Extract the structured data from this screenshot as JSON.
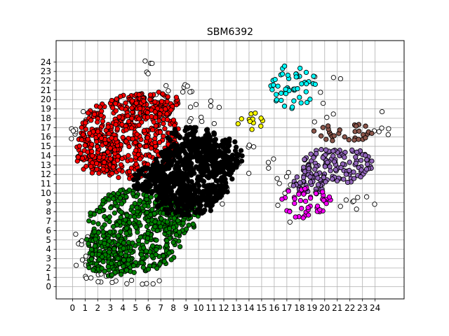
{
  "chart_data": {
    "type": "scatter",
    "title": "SBM6392",
    "xlabel": "",
    "ylabel": "",
    "xlim": [
      -1.3,
      26.3
    ],
    "ylim": [
      -1.3,
      26.3
    ],
    "x_ticks": [
      0,
      1,
      2,
      3,
      4,
      5,
      6,
      7,
      8,
      9,
      10,
      11,
      12,
      13,
      14,
      15,
      16,
      17,
      18,
      19,
      20,
      21,
      22,
      23,
      24
    ],
    "y_ticks": [
      0,
      1,
      2,
      3,
      4,
      5,
      6,
      7,
      8,
      9,
      10,
      11,
      12,
      13,
      14,
      15,
      16,
      17,
      18,
      19,
      20,
      21,
      22,
      23,
      24
    ],
    "grid": true,
    "marker_edge_color": "#000000",
    "series": [
      {
        "color": "#ffffff",
        "clusters": [
          {
            "cx": 0.5,
            "cy": 17.0,
            "rx": 0.8,
            "ry": 2.0,
            "n": 12
          },
          {
            "cx": 1.0,
            "cy": 4.0,
            "rx": 1.0,
            "ry": 2.5,
            "n": 14
          },
          {
            "cx": 2.5,
            "cy": 1.0,
            "rx": 1.5,
            "ry": 0.8,
            "n": 12
          },
          {
            "cx": 8.0,
            "cy": 21.0,
            "rx": 1.5,
            "ry": 1.2,
            "n": 10
          },
          {
            "cx": 6.0,
            "cy": 23.5,
            "rx": 1.0,
            "ry": 0.8,
            "n": 5
          },
          {
            "cx": 10.5,
            "cy": 18.5,
            "rx": 1.5,
            "ry": 1.5,
            "n": 10
          },
          {
            "cx": 14.5,
            "cy": 14.0,
            "rx": 1.5,
            "ry": 2.0,
            "n": 10
          },
          {
            "cx": 17.0,
            "cy": 9.0,
            "rx": 1.0,
            "ry": 4.0,
            "n": 10
          },
          {
            "cx": 22.5,
            "cy": 9.0,
            "rx": 1.5,
            "ry": 1.5,
            "n": 8
          },
          {
            "cx": 20.0,
            "cy": 20.0,
            "rx": 2.0,
            "ry": 3.0,
            "n": 8
          },
          {
            "cx": 24.5,
            "cy": 17.5,
            "rx": 1.0,
            "ry": 1.5,
            "n": 6
          },
          {
            "cx": 5.5,
            "cy": 0.5,
            "rx": 1.5,
            "ry": 0.4,
            "n": 6
          },
          {
            "cx": 11.5,
            "cy": 10.0,
            "rx": 1.0,
            "ry": 1.5,
            "n": 8
          }
        ]
      },
      {
        "color": "#ff0000",
        "clusters": [
          {
            "cx": 4.5,
            "cy": 16.0,
            "rx": 4.0,
            "ry": 4.5,
            "n": 420
          },
          {
            "cx": 2.0,
            "cy": 14.5,
            "rx": 1.8,
            "ry": 2.5,
            "n": 120
          },
          {
            "cx": 6.5,
            "cy": 19.5,
            "rx": 2.0,
            "ry": 1.5,
            "n": 80
          }
        ]
      },
      {
        "color": "#008000",
        "clusters": [
          {
            "cx": 5.0,
            "cy": 6.0,
            "rx": 4.0,
            "ry": 4.5,
            "n": 420
          },
          {
            "cx": 3.0,
            "cy": 3.0,
            "rx": 2.0,
            "ry": 2.0,
            "n": 100
          },
          {
            "cx": 8.0,
            "cy": 7.5,
            "rx": 2.2,
            "ry": 2.0,
            "n": 100
          }
        ]
      },
      {
        "color": "#000000",
        "clusters": [
          {
            "cx": 9.5,
            "cy": 12.0,
            "rx": 3.3,
            "ry": 3.5,
            "n": 480
          },
          {
            "cx": 6.5,
            "cy": 11.5,
            "rx": 2.0,
            "ry": 1.5,
            "n": 120
          },
          {
            "cx": 12.0,
            "cy": 14.0,
            "rx": 1.5,
            "ry": 2.0,
            "n": 90
          },
          {
            "cx": 9.0,
            "cy": 9.0,
            "rx": 2.5,
            "ry": 1.5,
            "n": 120
          },
          {
            "cx": 9.5,
            "cy": 16.0,
            "rx": 2.0,
            "ry": 1.2,
            "n": 70
          }
        ]
      },
      {
        "color": "#9467bd",
        "clusters": [
          {
            "cx": 21.0,
            "cy": 13.0,
            "rx": 2.8,
            "ry": 2.0,
            "n": 130
          },
          {
            "cx": 19.0,
            "cy": 11.0,
            "rx": 1.5,
            "ry": 1.2,
            "n": 40
          }
        ]
      },
      {
        "color": "#ff00ff",
        "clusters": [
          {
            "cx": 18.5,
            "cy": 9.0,
            "rx": 2.0,
            "ry": 1.8,
            "n": 45
          }
        ]
      },
      {
        "color": "#00ffff",
        "clusters": [
          {
            "cx": 17.5,
            "cy": 21.5,
            "rx": 1.8,
            "ry": 2.5,
            "n": 50
          }
        ]
      },
      {
        "color": "#8c564b",
        "clusters": [
          {
            "cx": 21.5,
            "cy": 16.5,
            "rx": 2.5,
            "ry": 1.0,
            "n": 30
          }
        ]
      },
      {
        "color": "#ffff00",
        "clusters": [
          {
            "cx": 14.0,
            "cy": 17.5,
            "rx": 1.3,
            "ry": 1.2,
            "n": 12
          }
        ]
      }
    ]
  }
}
